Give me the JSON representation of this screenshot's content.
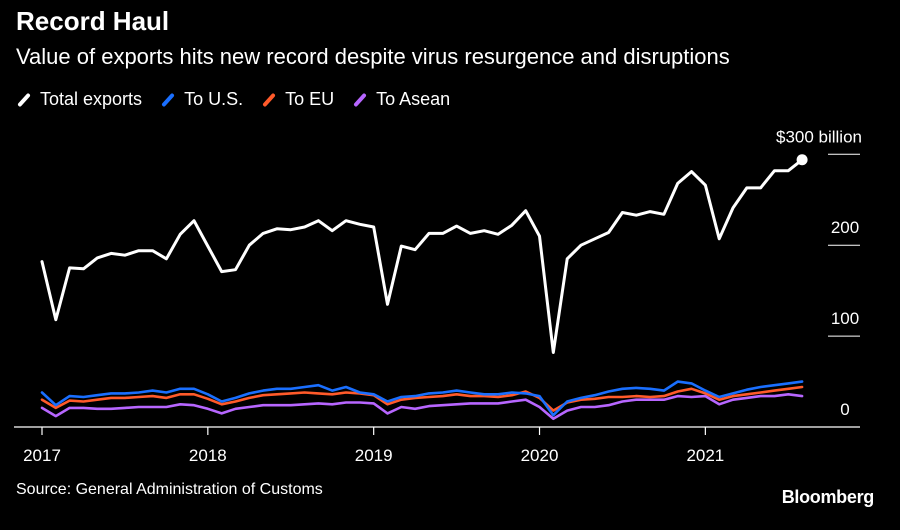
{
  "title": "Record Haul",
  "subtitle": "Value of exports hits new record despite virus resurgence and disruptions",
  "legend": [
    {
      "label": "Total exports",
      "color": "#ffffff"
    },
    {
      "label": "To U.S.",
      "color": "#1a6fff"
    },
    {
      "label": "To EU",
      "color": "#ff5a2a"
    },
    {
      "label": "To Asean",
      "color": "#b766ff"
    }
  ],
  "source": "Source: General Administration of Customs",
  "brand": "Bloomberg",
  "chart_data": {
    "type": "line",
    "x_start": "2017-01",
    "x_end": "2021-08",
    "x_unit": "month",
    "xticks": [
      "2017",
      "2018",
      "2019",
      "2020",
      "2021"
    ],
    "ylim": [
      0,
      300
    ],
    "yticks": [
      {
        "value": 0,
        "label": "0"
      },
      {
        "value": 100,
        "label": "100"
      },
      {
        "value": 200,
        "label": "200"
      },
      {
        "value": 300,
        "label": "$300 billion"
      }
    ],
    "grid": "horizontal",
    "last_point_marker": "Total exports",
    "series": [
      {
        "name": "Total exports",
        "color": "#ffffff",
        "values": [
          182,
          118,
          175,
          174,
          186,
          191,
          189,
          194,
          194,
          185,
          212,
          227,
          199,
          171,
          173,
          200,
          213,
          218,
          217,
          220,
          227,
          216,
          227,
          223,
          220,
          135,
          199,
          195,
          213,
          213,
          221,
          213,
          216,
          212,
          222,
          238,
          210,
          82,
          185,
          200,
          207,
          214,
          236,
          233,
          237,
          234,
          268,
          281,
          266,
          207,
          241,
          263,
          263,
          282,
          282,
          294
        ]
      },
      {
        "name": "To U.S.",
        "color": "#1a6fff",
        "values": [
          38,
          24,
          34,
          33,
          35,
          37,
          37,
          38,
          40,
          38,
          42,
          42,
          36,
          28,
          32,
          37,
          40,
          42,
          42,
          44,
          46,
          40,
          44,
          38,
          36,
          28,
          33,
          34,
          37,
          38,
          40,
          38,
          36,
          36,
          38,
          37,
          34,
          13,
          28,
          32,
          35,
          39,
          42,
          43,
          42,
          40,
          50,
          48,
          40,
          33,
          37,
          41,
          44,
          46,
          48,
          50
        ]
      },
      {
        "name": "To EU",
        "color": "#ff5a2a",
        "values": [
          30,
          21,
          29,
          28,
          30,
          32,
          32,
          33,
          34,
          32,
          36,
          36,
          31,
          25,
          28,
          32,
          35,
          36,
          37,
          38,
          37,
          36,
          38,
          37,
          35,
          25,
          30,
          32,
          33,
          34,
          36,
          34,
          34,
          33,
          35,
          39,
          32,
          18,
          27,
          30,
          31,
          33,
          33,
          34,
          33,
          34,
          39,
          42,
          37,
          30,
          34,
          36,
          38,
          40,
          42,
          44
        ]
      },
      {
        "name": "To Asean",
        "color": "#b766ff",
        "values": [
          21,
          12,
          21,
          21,
          20,
          20,
          21,
          22,
          22,
          22,
          25,
          24,
          20,
          15,
          20,
          22,
          24,
          24,
          24,
          25,
          26,
          25,
          27,
          27,
          26,
          15,
          22,
          20,
          23,
          24,
          25,
          26,
          26,
          26,
          28,
          30,
          22,
          9,
          18,
          22,
          22,
          24,
          28,
          30,
          30,
          30,
          34,
          33,
          34,
          25,
          30,
          32,
          34,
          34,
          36,
          34
        ]
      }
    ]
  }
}
